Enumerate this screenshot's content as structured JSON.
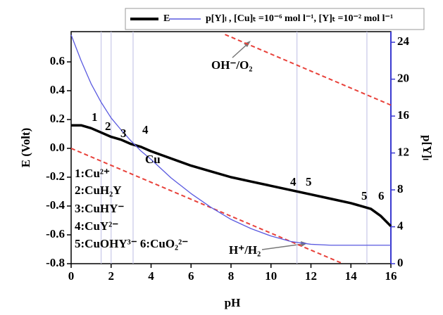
{
  "chart_data": {
    "type": "line",
    "x_label": "pH",
    "y_label": "E (Volt)",
    "y2_label": "p[Y]ₗ",
    "x": [
      0,
      0.5,
      1,
      1.5,
      2,
      2.5,
      3,
      3.5,
      4,
      5,
      6,
      7,
      8,
      9,
      10,
      11,
      12,
      13,
      14,
      15,
      15.5,
      16
    ],
    "series": [
      {
        "name": "E",
        "color": "#000000",
        "values": [
          0.16,
          0.16,
          0.14,
          0.11,
          0.08,
          0.06,
          0.03,
          0.01,
          -0.02,
          -0.07,
          -0.12,
          -0.16,
          -0.2,
          -0.23,
          -0.26,
          -0.29,
          -0.32,
          -0.35,
          -0.38,
          -0.42,
          -0.47,
          -0.54
        ]
      },
      {
        "name": "p[Y]ₗ , [Cu]ₜ =10⁻⁶ mol l⁻¹, [Y]ₜ =10⁻² mol l⁻¹",
        "color": "#5a5ae0",
        "axis": "y2",
        "values": [
          24.8,
          22,
          19.5,
          17.5,
          15.8,
          14.5,
          13.3,
          12.2,
          11.3,
          9.3,
          7.6,
          6.1,
          4.8,
          3.8,
          3.0,
          2.4,
          2.1,
          2.0,
          2.0,
          2.0,
          2.0,
          2.0
        ]
      }
    ],
    "reference_lines": [
      {
        "color": "#e8413a",
        "x": [
          0,
          13.6
        ],
        "values": [
          0,
          -0.8
        ]
      },
      {
        "color": "#e8413a",
        "x": [
          7.7,
          16
        ],
        "values": [
          0.79,
          0.3
        ]
      }
    ],
    "vlines": [
      1.5,
      2,
      3.1,
      11.3,
      14.8
    ],
    "xlim": [
      0,
      16
    ],
    "xticks": [
      0,
      2,
      4,
      6,
      8,
      10,
      12,
      14,
      16
    ],
    "ylim": [
      -0.8,
      0.8
    ],
    "yticks": [
      -0.8,
      -0.6,
      -0.4,
      -0.2,
      {
        "value": 0,
        "label": "0.0"
      },
      0.2,
      0.4,
      0.6
    ],
    "y2lim": [
      0,
      25
    ],
    "y2ticks": [
      0,
      4,
      8,
      12,
      16,
      20,
      24
    ],
    "annotations": [
      "1",
      "2",
      "3",
      "4",
      "Cu",
      "4",
      "5",
      "5",
      "6",
      "1:Cu²⁺",
      "2:CuH₂Y",
      "3:CuHY⁻",
      "4:CuY²⁻",
      "5:CuOHY³⁻ 6:CuO₂²⁻",
      "OH⁻/O₂",
      "H⁺/H₂"
    ]
  }
}
